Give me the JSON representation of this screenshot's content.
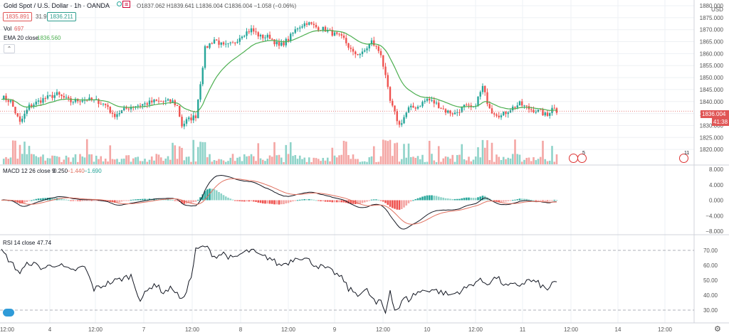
{
  "header": {
    "symbol": "Gold Spot / U.S. Dollar · 1h · OANDA",
    "ohlc": "O1837.062 H1839.641 L1836.004 C1836.004 −1.058 (−0.06%)",
    "bid": "1835.891",
    "spread": "31.9",
    "ask": "1836.211",
    "vol_label": "Vol",
    "vol_value": "697",
    "ema_label": "EMA 20 close",
    "ema_value": "1836.560",
    "macd_label": "MACD 12 26 close 9",
    "macd_values": [
      "0.250",
      "−1.440",
      "−1.690"
    ],
    "rsi_label": "RSI 14 close",
    "rsi_value": "47.74",
    "currency": "USD"
  },
  "labels": {
    "last_price": "1836.004",
    "countdown": "41:38",
    "event_count_a": "5",
    "event_count_b": "11"
  },
  "colors": {
    "up": "#26a69a",
    "down": "#ef5350",
    "up_vol": "#8fd3c9",
    "down_vol": "#f4a6a4",
    "ema": "#4caf50",
    "macd": "#131722",
    "signal": "#e0705f",
    "rsi": "#131722",
    "grid": "#eef0f4"
  },
  "chart_data": [
    {
      "type": "candlestick",
      "title": "Gold Spot / U.S. Dollar · 1h · OANDA",
      "ylim": [
        1815,
        1880
      ],
      "y_ticks": [
        "1880.000",
        "1875.000",
        "1870.000",
        "1865.000",
        "1860.000",
        "1855.000",
        "1850.000",
        "1845.000",
        "1840.000",
        "1835.000",
        "1830.000",
        "1825.000",
        "1820.000"
      ],
      "x_ticks": [
        "12:00",
        "4",
        "12:00",
        "7",
        "12:00",
        "8",
        "12:00",
        "9",
        "12:00",
        "10",
        "12:00",
        "11",
        "12:00",
        "14",
        "12:00"
      ],
      "anchors": [
        [
          0,
          1842
        ],
        [
          4,
          1840
        ],
        [
          8,
          1831
        ],
        [
          12,
          1838
        ],
        [
          18,
          1841
        ],
        [
          24,
          1843
        ],
        [
          30,
          1840
        ],
        [
          36,
          1841
        ],
        [
          42,
          1840
        ],
        [
          46,
          1838
        ],
        [
          48,
          1834
        ],
        [
          52,
          1836
        ],
        [
          56,
          1838
        ],
        [
          62,
          1839
        ],
        [
          66,
          1840
        ],
        [
          70,
          1840
        ],
        [
          74,
          1840
        ],
        [
          76,
          1838
        ],
        [
          78,
          1830
        ],
        [
          80,
          1832
        ],
        [
          84,
          1834
        ],
        [
          86,
          1848
        ],
        [
          88,
          1862
        ],
        [
          92,
          1866
        ],
        [
          96,
          1863
        ],
        [
          100,
          1864
        ],
        [
          104,
          1868
        ],
        [
          108,
          1870
        ],
        [
          112,
          1867
        ],
        [
          116,
          1867
        ],
        [
          120,
          1863
        ],
        [
          124,
          1866
        ],
        [
          128,
          1871
        ],
        [
          132,
          1873
        ],
        [
          136,
          1871
        ],
        [
          140,
          1870
        ],
        [
          144,
          1868
        ],
        [
          148,
          1866
        ],
        [
          152,
          1860
        ],
        [
          156,
          1860
        ],
        [
          160,
          1865
        ],
        [
          164,
          1860
        ],
        [
          168,
          1840
        ],
        [
          172,
          1830
        ],
        [
          176,
          1837
        ],
        [
          180,
          1838
        ],
        [
          184,
          1841
        ],
        [
          188,
          1839
        ],
        [
          192,
          1836
        ],
        [
          196,
          1835
        ],
        [
          200,
          1838
        ],
        [
          204,
          1837
        ],
        [
          208,
          1846
        ],
        [
          210,
          1840
        ],
        [
          212,
          1836
        ],
        [
          216,
          1834
        ],
        [
          220,
          1837
        ],
        [
          224,
          1839
        ],
        [
          228,
          1837
        ],
        [
          232,
          1836
        ],
        [
          236,
          1834
        ],
        [
          238,
          1838
        ],
        [
          240,
          1836
        ]
      ],
      "ema_note": "EMA 20 close overlay"
    },
    {
      "type": "bar",
      "title": "Vol",
      "value": 697
    },
    {
      "type": "line",
      "title": "MACD 12 26 close 9",
      "ylim": [
        -9,
        9
      ],
      "y_ticks": [
        "8.000",
        "4.000",
        "0.000",
        "−4.000",
        "−8.000"
      ],
      "series": [
        {
          "name": "MACD"
        },
        {
          "name": "Signal"
        },
        {
          "name": "Histogram"
        }
      ]
    },
    {
      "type": "line",
      "title": "RSI 14 close",
      "ylim": [
        24,
        76
      ],
      "y_ticks": [
        "70.00",
        "60.00",
        "50.00",
        "40.00",
        "30.00"
      ],
      "bands": [
        30,
        70
      ],
      "rsi_anchors": [
        [
          0,
          70
        ],
        [
          4,
          62
        ],
        [
          8,
          55
        ],
        [
          12,
          62
        ],
        [
          18,
          58
        ],
        [
          24,
          61
        ],
        [
          30,
          56
        ],
        [
          36,
          59
        ],
        [
          40,
          44
        ],
        [
          46,
          48
        ],
        [
          50,
          50
        ],
        [
          56,
          53
        ],
        [
          60,
          37
        ],
        [
          66,
          48
        ],
        [
          70,
          42
        ],
        [
          74,
          45
        ],
        [
          78,
          36
        ],
        [
          82,
          52
        ],
        [
          84,
          70
        ],
        [
          88,
          73
        ],
        [
          92,
          66
        ],
        [
          96,
          68
        ],
        [
          100,
          64
        ],
        [
          104,
          68
        ],
        [
          108,
          70
        ],
        [
          112,
          66
        ],
        [
          116,
          65
        ],
        [
          120,
          60
        ],
        [
          124,
          62
        ],
        [
          128,
          66
        ],
        [
          132,
          64
        ],
        [
          136,
          60
        ],
        [
          140,
          58
        ],
        [
          144,
          55
        ],
        [
          148,
          50
        ],
        [
          150,
          44
        ],
        [
          154,
          41
        ],
        [
          158,
          43
        ],
        [
          162,
          34
        ],
        [
          164,
          36
        ],
        [
          166,
          28
        ],
        [
          168,
          44
        ],
        [
          170,
          30
        ],
        [
          172,
          32
        ],
        [
          174,
          38
        ],
        [
          176,
          37
        ],
        [
          178,
          40
        ],
        [
          180,
          42
        ],
        [
          186,
          44
        ],
        [
          194,
          40
        ],
        [
          200,
          44
        ],
        [
          206,
          50
        ],
        [
          210,
          48
        ],
        [
          214,
          52
        ],
        [
          218,
          46
        ],
        [
          224,
          47
        ],
        [
          228,
          50
        ],
        [
          232,
          48
        ],
        [
          236,
          43
        ],
        [
          238,
          49
        ],
        [
          240,
          47
        ]
      ]
    }
  ]
}
